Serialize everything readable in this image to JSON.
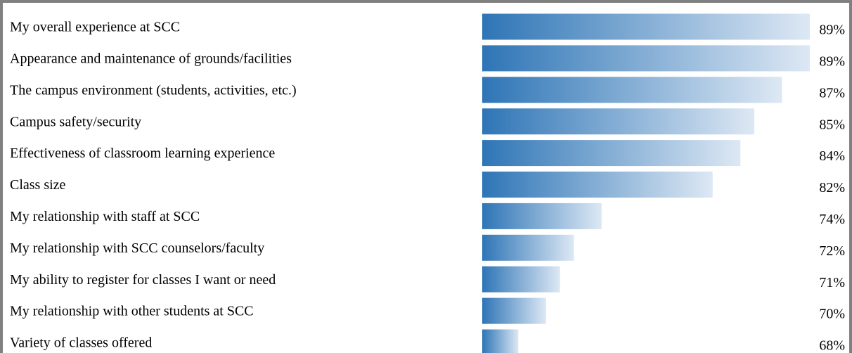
{
  "chart_data": {
    "type": "bar",
    "orientation": "horizontal",
    "categories": [
      "My overall experience at SCC",
      "Appearance and maintenance of grounds/facilities",
      "The campus environment (students, activities, etc.)",
      "Campus safety/security",
      "Effectiveness of classroom learning experience",
      "Class size",
      "My relationship with staff at SCC",
      "My relationship with SCC counselors/faculty",
      "My ability to register for classes I want or need",
      "My relationship with other students at SCC",
      "Variety of classes offered"
    ],
    "values": [
      89,
      89,
      87,
      85,
      84,
      82,
      74,
      72,
      71,
      70,
      68
    ],
    "value_labels": [
      "89%",
      "89%",
      "87%",
      "85%",
      "84%",
      "82%",
      "74%",
      "72%",
      "71%",
      "70%",
      "68%"
    ],
    "color": "#2e75b6",
    "xlim": [
      65.4,
      89
    ]
  }
}
